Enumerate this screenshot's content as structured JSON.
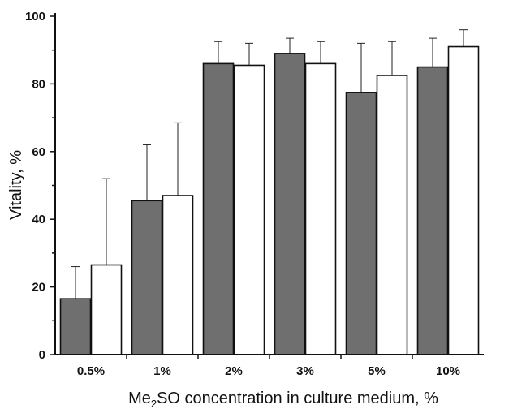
{
  "chart_data": {
    "type": "bar",
    "title": "",
    "xlabel_parts": [
      "Me",
      "2",
      "SO concentration in culture medium, %"
    ],
    "ylabel": "Vitality, %",
    "categories": [
      "0.5%",
      "1%",
      "2%",
      "3%",
      "5%",
      "10%"
    ],
    "ylim": [
      0,
      100
    ],
    "yticks": [
      0,
      20,
      40,
      60,
      80,
      100
    ],
    "grid": false,
    "legend": "none",
    "series": [
      {
        "color": "#6f6f6f",
        "values": [
          16.5,
          45.5,
          86,
          89,
          77.5,
          85
        ],
        "error_plus": [
          9.5,
          16.5,
          6.5,
          4.5,
          14.5,
          8.5
        ]
      },
      {
        "color": "#ffffff",
        "values": [
          26.5,
          47,
          85.5,
          86,
          82.5,
          91
        ],
        "error_plus": [
          25.5,
          21.5,
          6.5,
          6.5,
          10,
          5
        ]
      }
    ]
  }
}
